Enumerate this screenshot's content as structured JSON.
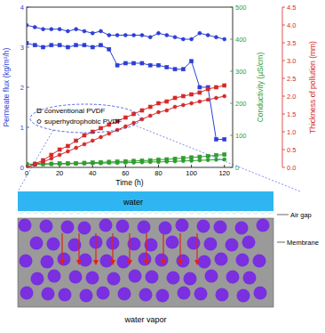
{
  "chart_data": {
    "type": "line",
    "x_label": "Time (h)",
    "y_label": "Permeate flux (kg/m²/h)",
    "y2_label": "Conductivity (µS/cm)",
    "y3_label": "Thickness of pollution (mm)",
    "x": [
      0,
      5,
      10,
      15,
      20,
      25,
      30,
      35,
      40,
      45,
      50,
      55,
      60,
      65,
      70,
      75,
      80,
      85,
      90,
      95,
      100,
      105,
      110,
      115,
      120
    ],
    "xlim": [
      0,
      125
    ],
    "xticks": [
      0,
      20,
      40,
      60,
      80,
      100,
      120
    ],
    "ylim": [
      0,
      4
    ],
    "yticks": [
      0,
      1,
      2,
      3,
      4
    ],
    "y2lim": [
      0,
      500
    ],
    "y2ticks": [
      0,
      100,
      200,
      300,
      400,
      500
    ],
    "y3lim": [
      0,
      4.5
    ],
    "y3ticks": [
      {
        "value": 0,
        "label": "0.0"
      },
      {
        "value": 0.5,
        "label": "0.5"
      },
      {
        "value": 1,
        "label": "1.0"
      },
      {
        "value": 1.5,
        "label": "1.5"
      },
      {
        "value": 2,
        "label": "2.0"
      },
      {
        "value": 2.5,
        "label": "2.5"
      },
      {
        "value": 3,
        "label": "3.0"
      },
      {
        "value": 3.5,
        "label": "3.5"
      },
      {
        "value": 4,
        "label": "4.0"
      },
      {
        "value": 4.5,
        "label": "4.5"
      }
    ],
    "legend": "lower left",
    "series": [
      {
        "name": "conventional PVDF",
        "color": "#2b3fd6",
        "marker": "square",
        "axis": "y",
        "values": [
          3.1,
          3.05,
          3.0,
          3.05,
          3.05,
          3.0,
          3.05,
          3.05,
          3.0,
          3.05,
          2.95,
          2.55,
          2.6,
          2.6,
          2.6,
          2.55,
          2.55,
          2.5,
          2.45,
          2.45,
          2.65,
          2.0,
          2.0,
          0.7,
          0.7
        ]
      },
      {
        "name": "superhydrophobic PVDF",
        "color": "#2b3fd6",
        "marker": "circle",
        "axis": "y",
        "values": [
          3.55,
          3.5,
          3.45,
          3.45,
          3.45,
          3.4,
          3.45,
          3.4,
          3.35,
          3.4,
          3.3,
          3.3,
          3.3,
          3.3,
          3.3,
          3.25,
          3.35,
          3.3,
          3.25,
          3.2,
          3.2,
          3.35,
          3.3,
          3.25,
          3.2
        ]
      },
      {
        "name": "conventional PVDF",
        "color": "#2e9e2e",
        "marker": "square",
        "axis": "y2",
        "values": [
          10,
          10,
          11,
          11,
          12,
          13,
          13,
          14,
          15,
          16,
          17,
          18,
          19,
          20,
          21,
          22,
          24,
          25,
          27,
          29,
          31,
          33,
          35,
          38,
          40
        ]
      },
      {
        "name": "superhydrophobic PVDF",
        "color": "#2e9e2e",
        "marker": "circle",
        "axis": "y2",
        "values": [
          10,
          10,
          10,
          11,
          11,
          11,
          12,
          12,
          13,
          13,
          14,
          14,
          15,
          15,
          16,
          17,
          17,
          18,
          19,
          20,
          21,
          22,
          23,
          24,
          25
        ]
      },
      {
        "name": "conventional PVDF",
        "color": "#d42a2a",
        "marker": "square",
        "axis": "y3",
        "values": [
          0,
          0.1,
          0.2,
          0.35,
          0.5,
          0.6,
          0.75,
          0.9,
          1.0,
          1.1,
          1.2,
          1.3,
          1.4,
          1.5,
          1.6,
          1.7,
          1.8,
          1.85,
          1.95,
          2.0,
          2.05,
          2.1,
          2.2,
          2.25,
          2.3
        ]
      },
      {
        "name": "superhydrophobic PVDF",
        "color": "#d42a2a",
        "marker": "circle",
        "axis": "y3",
        "values": [
          0,
          0.08,
          0.15,
          0.25,
          0.35,
          0.45,
          0.55,
          0.65,
          0.75,
          0.85,
          0.95,
          1.05,
          1.15,
          1.25,
          1.35,
          1.45,
          1.55,
          1.6,
          1.7,
          1.75,
          1.8,
          1.85,
          1.9,
          1.95,
          2.0
        ]
      }
    ],
    "annotations": [
      "water",
      "Air gap",
      "Membrane",
      "water vapor"
    ]
  }
}
